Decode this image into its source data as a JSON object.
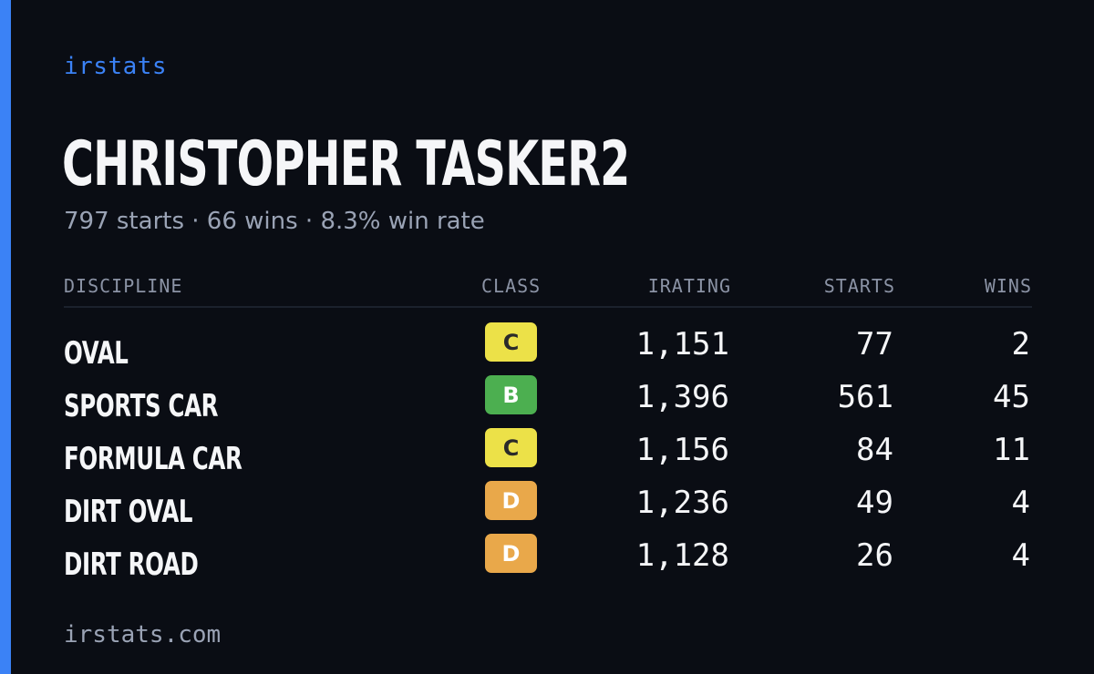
{
  "brand": "irstats",
  "player": {
    "name": "CHRISTOPHER TASKER2",
    "summary": "797 starts · 66 wins · 8.3% win rate"
  },
  "table": {
    "headers": {
      "discipline": "DISCIPLINE",
      "class": "CLASS",
      "irating": "IRATING",
      "starts": "STARTS",
      "wins": "WINS"
    },
    "rows": [
      {
        "discipline": "OVAL",
        "class": "C",
        "irating": "1,151",
        "starts": "77",
        "wins": "2"
      },
      {
        "discipline": "SPORTS CAR",
        "class": "B",
        "irating": "1,396",
        "starts": "561",
        "wins": "45"
      },
      {
        "discipline": "FORMULA CAR",
        "class": "C",
        "irating": "1,156",
        "starts": "84",
        "wins": "11"
      },
      {
        "discipline": "DIRT OVAL",
        "class": "D",
        "irating": "1,236",
        "starts": "49",
        "wins": "4"
      },
      {
        "discipline": "DIRT ROAD",
        "class": "D",
        "irating": "1,128",
        "starts": "26",
        "wins": "4"
      }
    ]
  },
  "class_colors": {
    "B": {
      "bg": "#4caf50",
      "fg": "#ffffff"
    },
    "C": {
      "bg": "#ece148",
      "fg": "#2a2a2a"
    },
    "D": {
      "bg": "#e9a84a",
      "fg": "#ffffff"
    }
  },
  "colors": {
    "accent": "#3b82f6",
    "background": "#0a0d14"
  },
  "footer": "irstats.com"
}
